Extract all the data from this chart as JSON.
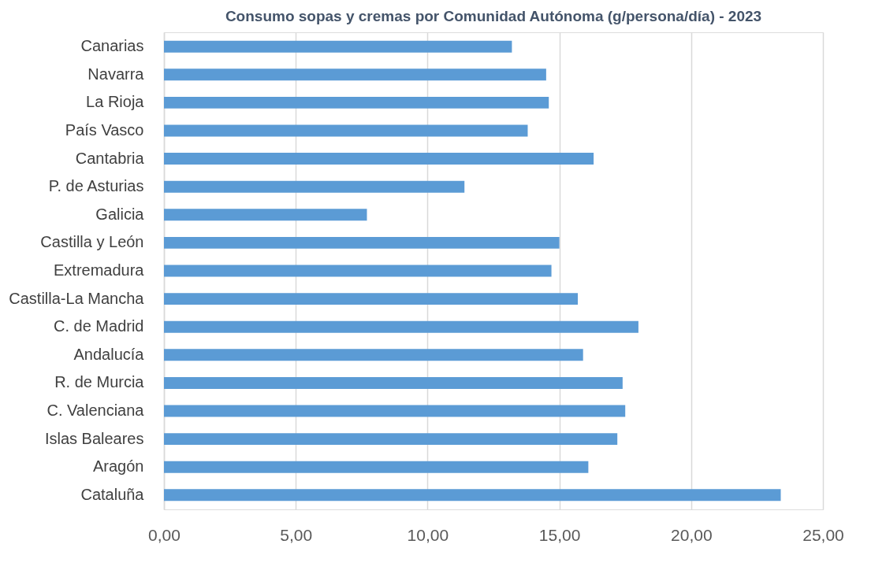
{
  "chart_data": {
    "type": "bar",
    "orientation": "horizontal",
    "title": "Consumo sopas y cremas por Comunidad Autónoma (g/persona/día) - 2023",
    "categories": [
      "Canarias",
      "Navarra",
      "La Rioja",
      "País Vasco",
      "Cantabria",
      "P. de Asturias",
      "Galicia",
      "Castilla y León",
      "Extremadura",
      "Castilla-La Mancha",
      "C. de Madrid",
      "Andalucía",
      "R. de Murcia",
      "C. Valenciana",
      "Islas Baleares",
      "Aragón",
      "Cataluña"
    ],
    "values": [
      13.2,
      14.5,
      14.6,
      13.8,
      16.3,
      11.4,
      7.7,
      15.0,
      14.7,
      15.7,
      18.0,
      15.9,
      17.4,
      17.5,
      17.2,
      16.1,
      23.4
    ],
    "color": "#5b9bd5",
    "xlim": [
      0,
      25
    ],
    "xticks": [
      {
        "value": 0,
        "label": "0,00"
      },
      {
        "value": 5,
        "label": "5,00"
      },
      {
        "value": 10,
        "label": "10,00"
      },
      {
        "value": 15,
        "label": "15,00"
      },
      {
        "value": 20,
        "label": "20,00"
      },
      {
        "value": 25,
        "label": "25,00"
      }
    ],
    "grid": "x"
  }
}
